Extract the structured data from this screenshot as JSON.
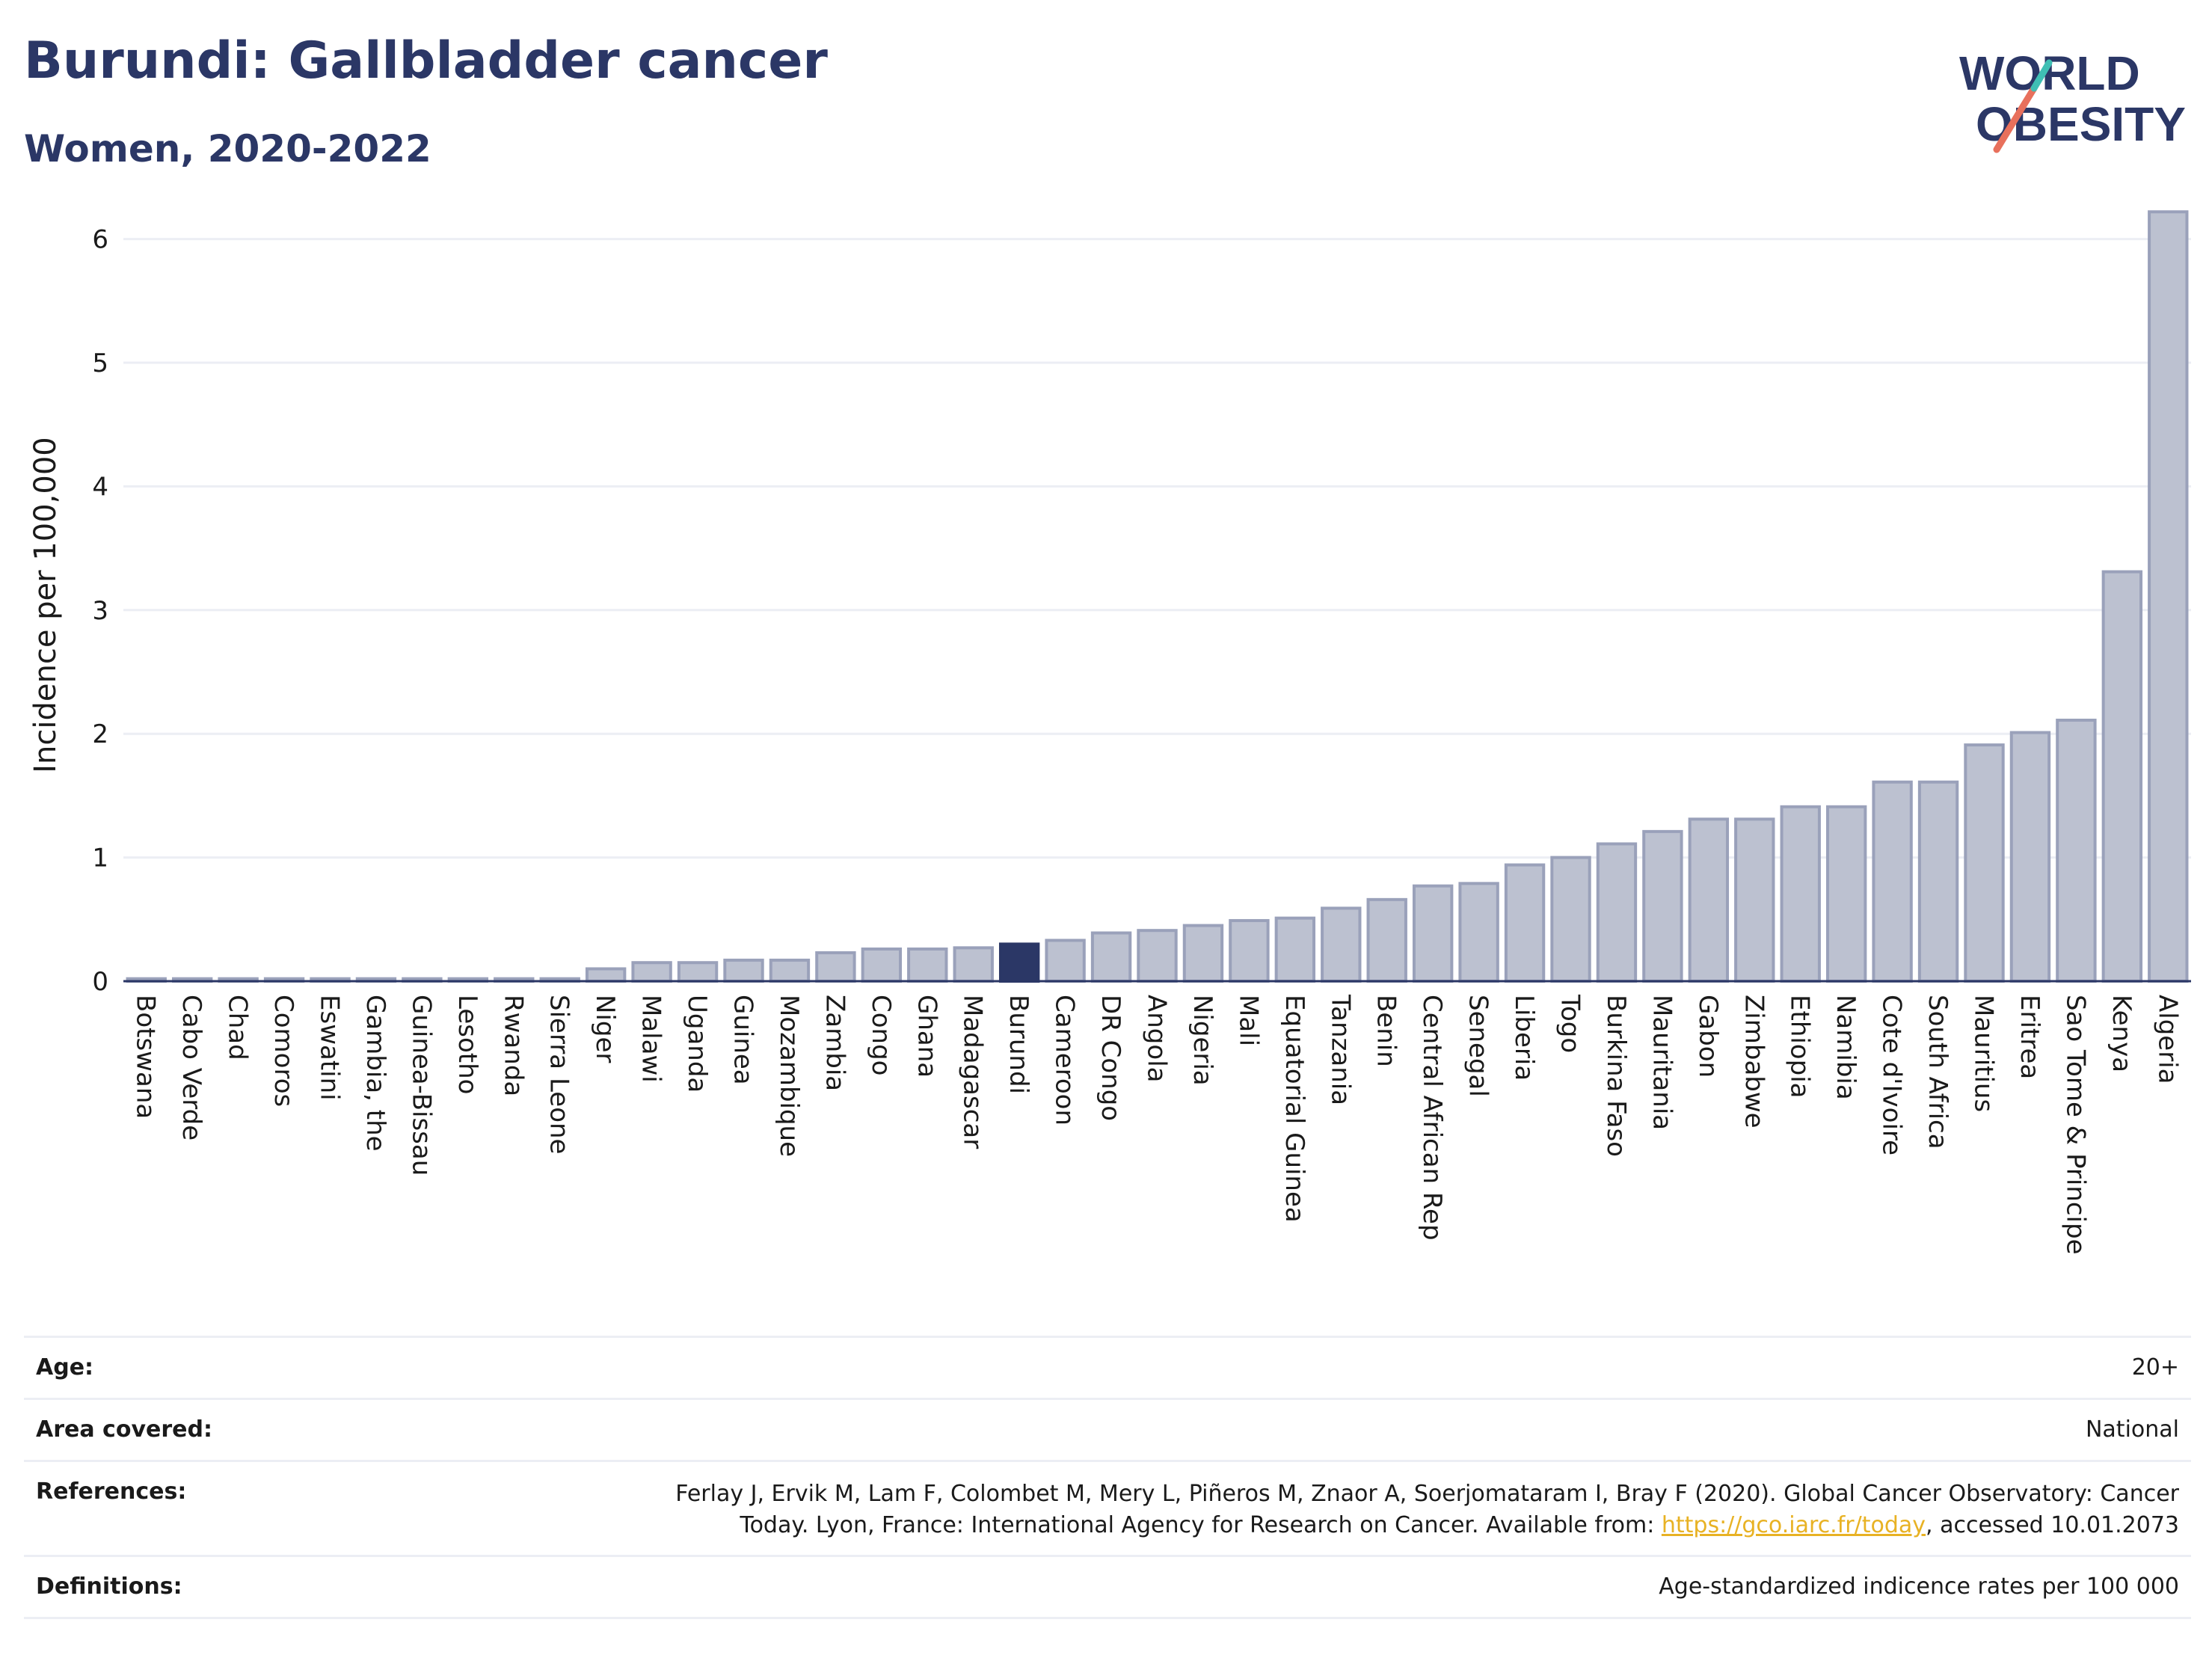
{
  "header": {
    "title": "Burundi: Gallbladder cancer",
    "subtitle": "Women, 2020-2022"
  },
  "logo": {
    "line1": "WORLD",
    "line2": "OBESITY"
  },
  "colors": {
    "title": "#2b3766",
    "bar": "#bcc1d0",
    "bar_stroke": "#9aa1ba",
    "highlight": "#2b3766",
    "link": "#e8b224"
  },
  "chart_data": {
    "type": "bar",
    "ylabel": "Incidence per 100,000",
    "ylim": [
      0,
      6.3
    ],
    "yticks": [
      0,
      1,
      2,
      3,
      4,
      5,
      6
    ],
    "grid": true,
    "highlight": "Burundi",
    "categories": [
      "Botswana",
      "Cabo Verde",
      "Chad",
      "Comoros",
      "Eswatini",
      "Gambia, the",
      "Guinea-Bissau",
      "Lesotho",
      "Rwanda",
      "Sierra Leone",
      "Niger",
      "Malawi",
      "Uganda",
      "Guinea",
      "Mozambique",
      "Zambia",
      "Congo",
      "Ghana",
      "Madagascar",
      "Burundi",
      "Cameroon",
      "DR Congo",
      "Angola",
      "Nigeria",
      "Mali",
      "Equatorial Guinea",
      "Tanzania",
      "Benin",
      "Central African Rep",
      "Senegal",
      "Liberia",
      "Togo",
      "Burkina Faso",
      "Mauritania",
      "Gabon",
      "Zimbabwe",
      "Ethiopia",
      "Namibia",
      "Cote d'Ivoire",
      "South Africa",
      "Mauritius",
      "Eritrea",
      "Sao Tome & Principe",
      "Kenya",
      "Algeria"
    ],
    "values": [
      0.02,
      0.02,
      0.02,
      0.02,
      0.02,
      0.02,
      0.02,
      0.02,
      0.02,
      0.02,
      0.1,
      0.15,
      0.15,
      0.17,
      0.17,
      0.23,
      0.26,
      0.26,
      0.27,
      0.3,
      0.33,
      0.39,
      0.41,
      0.45,
      0.49,
      0.51,
      0.59,
      0.66,
      0.77,
      0.79,
      0.94,
      1.0,
      1.11,
      1.21,
      1.31,
      1.31,
      1.41,
      1.41,
      1.61,
      1.61,
      1.91,
      2.01,
      2.11,
      3.31,
      6.22
    ]
  },
  "meta": {
    "age_label": "Age:",
    "age_value": "20+",
    "area_label": "Area covered:",
    "area_value": "National",
    "references_label": "References:",
    "references_line1": "Ferlay J, Ervik M, Lam F, Colombet M, Mery L, Piñeros M, Znaor A, Soerjomataram I, Bray F (2020). Global Cancer Observatory: Cancer",
    "references_line2_pre": "Today. Lyon, France: International Agency for Research on Cancer. Available from: ",
    "references_link": "https://gco.iarc.fr/today",
    "references_line2_post": ", accessed 10.01.2073",
    "definitions_label": "Definitions:",
    "definitions_value": "Age-standardized indicence rates per 100 000"
  }
}
